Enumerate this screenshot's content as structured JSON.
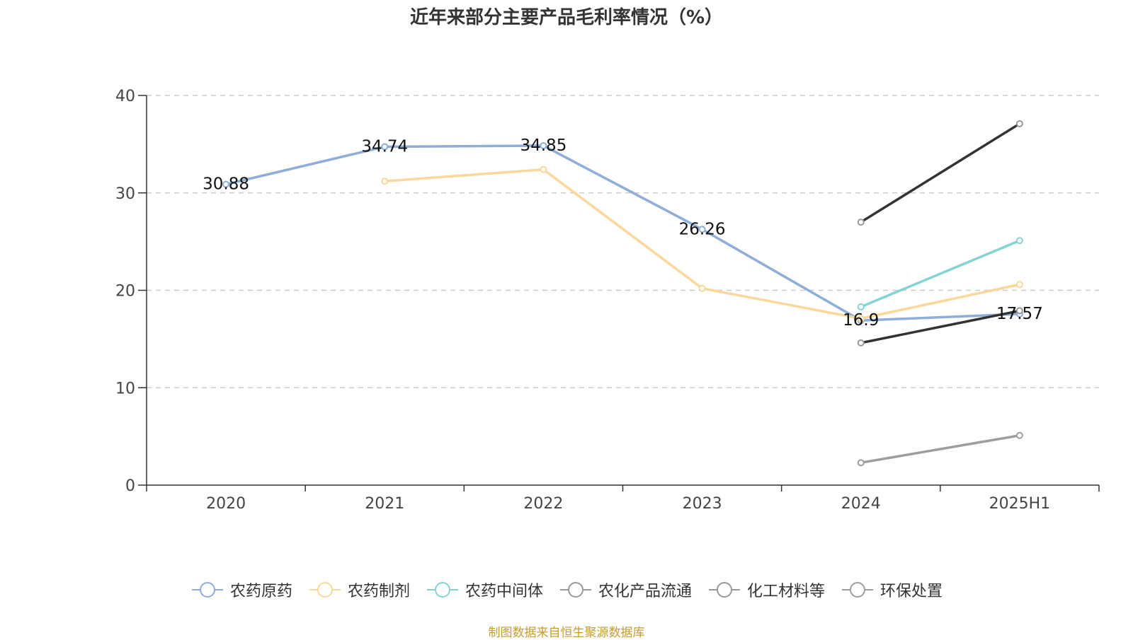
{
  "chart_data": {
    "type": "line",
    "title": "近年来部分主要产品毛利率情况（%）",
    "categories": [
      "2020",
      "2021",
      "2022",
      "2023",
      "2024",
      "2025H1"
    ],
    "ylim": [
      0,
      40
    ],
    "yticks": [
      "0",
      "10",
      "20",
      "30",
      "40"
    ],
    "grid": true,
    "legend_position": "bottom",
    "series": [
      {
        "name": "农药原药",
        "color": "#8eadd8",
        "values": [
          30.88,
          34.74,
          34.85,
          26.26,
          16.9,
          17.57
        ],
        "labels": [
          "30.88",
          "34.74",
          "34.85",
          "26.26",
          "16.9",
          "17.57"
        ]
      },
      {
        "name": "农药制剂",
        "color": "#fad79a",
        "values": [
          null,
          31.2,
          32.4,
          20.2,
          17.1,
          20.6
        ]
      },
      {
        "name": "农药中间体",
        "color": "#86d3d3",
        "values": [
          null,
          null,
          null,
          null,
          18.3,
          25.1
        ]
      },
      {
        "name": "农化产品流通",
        "color": "#333333",
        "values": [
          null,
          null,
          null,
          null,
          27.0,
          37.1
        ]
      },
      {
        "name": "化工材料等",
        "color": "#333333",
        "values": [
          null,
          null,
          null,
          null,
          14.6,
          17.9
        ]
      },
      {
        "name": "环保处置",
        "color": "#9e9e9e",
        "values": [
          null,
          null,
          null,
          null,
          2.3,
          5.1
        ]
      }
    ]
  },
  "footer": {
    "source": "制图数据来自恒生聚源数据库"
  }
}
